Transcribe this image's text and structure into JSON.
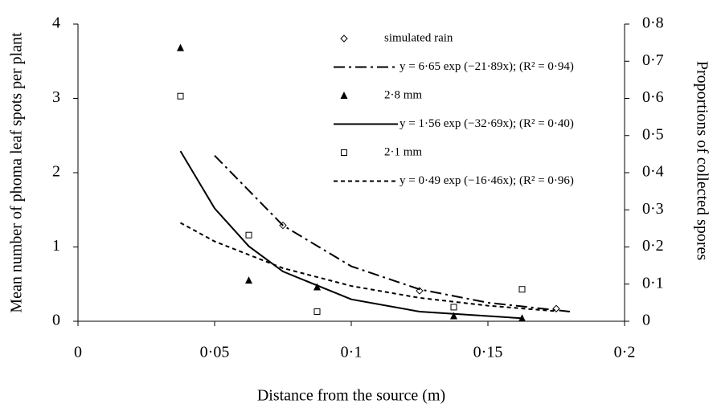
{
  "chart_data": {
    "type": "scatter",
    "xlabel": "Distance from the source (m)",
    "ylabel": "Mean number of phoma leaf spots per plant",
    "y2label": "Proportions of collected spores",
    "xlim": [
      0,
      0.2
    ],
    "xticks": [
      0,
      {
        "value": 0.05,
        "label": "0·05"
      },
      {
        "value": 0.1,
        "label": "0·1"
      },
      {
        "value": 0.15,
        "label": "0·15"
      },
      {
        "value": 0.2,
        "label": "0·2"
      }
    ],
    "ylim": [
      0,
      4
    ],
    "yticks": [
      0,
      1,
      2,
      3,
      4
    ],
    "y2lim": [
      0,
      0.8
    ],
    "y2ticks": [
      0,
      {
        "value": 0.1,
        "label": "0·1"
      },
      {
        "value": 0.2,
        "label": "0·2"
      },
      {
        "value": 0.3,
        "label": "0·3"
      },
      {
        "value": 0.4,
        "label": "0·4"
      },
      {
        "value": 0.5,
        "label": "0·5"
      },
      {
        "value": 0.6,
        "label": "0·6"
      },
      {
        "value": 0.7,
        "label": "0·7"
      },
      {
        "value": 0.8,
        "label": "0·8"
      }
    ],
    "series": [
      {
        "name": "simulated rain",
        "marker": "diamond",
        "color": "#000000",
        "axis": "y",
        "x": [
          0.075,
          0.125,
          0.175
        ],
        "values": [
          1.29,
          0.41,
          0.17
        ]
      },
      {
        "name": "y = 6·65 exp (−21·89x); (R² = 0·94)",
        "line": "dashdot",
        "color": "#000000",
        "axis": "y",
        "x": [
          0.05,
          0.075,
          0.1,
          0.125,
          0.15,
          0.18
        ],
        "values": [
          2.23,
          1.29,
          0.74,
          0.43,
          0.25,
          0.13
        ]
      },
      {
        "name": "2·8 mm",
        "marker": "triangle",
        "color": "#000000",
        "axis": "y2",
        "x": [
          0.0375,
          0.0625,
          0.0875,
          0.1375,
          0.1625
        ],
        "values": [
          0.736,
          0.11,
          0.092,
          0.014,
          0.008
        ]
      },
      {
        "name": "y = 1·56 exp (−32·69x); (R² = 0·40)",
        "line": "solid",
        "color": "#000000",
        "axis": "y2",
        "x": [
          0.0375,
          0.05,
          0.0625,
          0.075,
          0.1,
          0.125,
          0.1625
        ],
        "values": [
          0.458,
          0.304,
          0.202,
          0.134,
          0.059,
          0.026,
          0.008
        ]
      },
      {
        "name": "2·1 mm",
        "marker": "square",
        "color": "#000000",
        "axis": "y2",
        "x": [
          0.0375,
          0.0625,
          0.0875,
          0.1375,
          0.1625
        ],
        "values": [
          0.606,
          0.232,
          0.026,
          0.038,
          0.086
        ]
      },
      {
        "name": "y = 0·49 exp (−16·46x); (R² = 0·96)",
        "line": "dotted",
        "color": "#000000",
        "axis": "y2",
        "x": [
          0.0375,
          0.05,
          0.075,
          0.1,
          0.125,
          0.15,
          0.175
        ],
        "values": [
          0.265,
          0.215,
          0.143,
          0.095,
          0.063,
          0.042,
          0.027
        ]
      }
    ]
  }
}
